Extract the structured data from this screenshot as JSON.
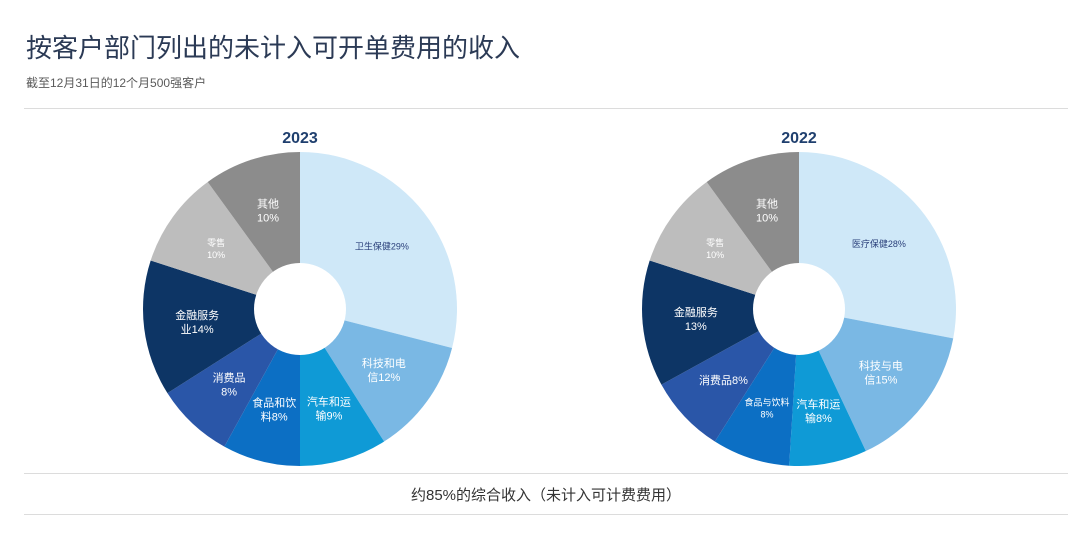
{
  "header": {
    "title": "按客户部门列出的未计入可开单费用的收入",
    "subtitle": "截至12月31日的12个月500强客户"
  },
  "footer": {
    "note": "约85%的综合收入（未计入可计费费用）"
  },
  "chart_data": [
    {
      "type": "pie",
      "title": "2023",
      "slices": [
        {
          "label": [
            "卫生保健29%"
          ],
          "value": 29,
          "color": "#cfe8f8",
          "text_color": "#2a3f7a",
          "small": true
        },
        {
          "label": [
            "科技和电",
            "信12%"
          ],
          "value": 12,
          "color": "#7ab8e4",
          "text_color": "#ffffff"
        },
        {
          "label": [
            "汽车和运",
            "输9%"
          ],
          "value": 9,
          "color": "#0f9ad6",
          "text_color": "#ffffff"
        },
        {
          "label": [
            "食品和饮",
            "料8%"
          ],
          "value": 8,
          "color": "#0c6fc4",
          "text_color": "#ffffff"
        },
        {
          "label": [
            "消费品",
            "8%"
          ],
          "value": 8,
          "color": "#2a56a8",
          "text_color": "#ffffff"
        },
        {
          "label": [
            "金融服务",
            "业14%"
          ],
          "value": 14,
          "color": "#0d3565",
          "text_color": "#ffffff"
        },
        {
          "label": [
            "零售",
            "10%"
          ],
          "value": 10,
          "color": "#bdbdbd",
          "text_color": "#ffffff",
          "small": true
        },
        {
          "label": [
            "其他",
            "10%"
          ],
          "value": 10,
          "color": "#8c8c8c",
          "text_color": "#ffffff"
        }
      ]
    },
    {
      "type": "pie",
      "title": "2022",
      "slices": [
        {
          "label": [
            "医疗保健28%"
          ],
          "value": 28,
          "color": "#cfe8f8",
          "text_color": "#2a3f7a",
          "small": true
        },
        {
          "label": [
            "科技与电",
            "信15%"
          ],
          "value": 15,
          "color": "#7ab8e4",
          "text_color": "#ffffff"
        },
        {
          "label": [
            "汽车和运",
            "输8%"
          ],
          "value": 8,
          "color": "#0f9ad6",
          "text_color": "#ffffff"
        },
        {
          "label": [
            "食品与饮料",
            "8%"
          ],
          "value": 8,
          "color": "#0c6fc4",
          "text_color": "#ffffff",
          "small": true
        },
        {
          "label": [
            "消费品8%"
          ],
          "value": 8,
          "color": "#2a56a8",
          "text_color": "#ffffff"
        },
        {
          "label": [
            "金融服务",
            "13%"
          ],
          "value": 13,
          "color": "#0d3565",
          "text_color": "#ffffff"
        },
        {
          "label": [
            "零售",
            "10%"
          ],
          "value": 10,
          "color": "#bdbdbd",
          "text_color": "#ffffff",
          "small": true
        },
        {
          "label": [
            "其他",
            "10%"
          ],
          "value": 10,
          "color": "#8c8c8c",
          "text_color": "#ffffff"
        }
      ]
    }
  ]
}
